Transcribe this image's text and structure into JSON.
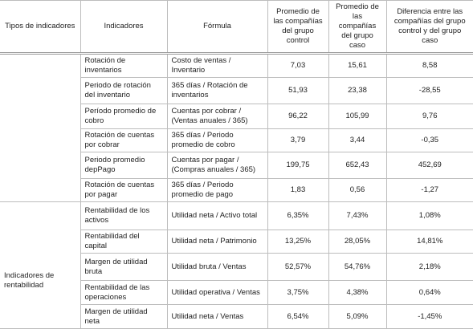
{
  "table": {
    "columns": [
      "Tipos de indicadores",
      "Indicadores",
      "Fórmula",
      "Promedio de las compañías del grupo control",
      "Promedio de las compañías del grupo caso",
      "Diferencia entre las compañías del grupo control y del grupo caso"
    ],
    "groups": [
      {
        "rows": [
          [
            "Rotación de inventarios",
            "Costo de ventas / Inventario",
            "7,03",
            "15,61",
            "8,58"
          ],
          [
            "Periodo de rotación del inventario",
            "365 días / Rotación de inventarios",
            "51,93",
            "23,38",
            "-28,55"
          ],
          [
            "Período promedio de cobro",
            "Cuentas por cobrar / (Ventas anuales / 365)",
            "96,22",
            "105,99",
            "9,76"
          ],
          [
            "Rotación de cuentas por cobrar",
            "365 días / Periodo promedio de cobro",
            "3,79",
            "3,44",
            "-0,35"
          ],
          [
            "Periodo promedio depPago",
            "Cuentas por pagar / (Compras anuales / 365)",
            "199,75",
            "652,43",
            "452,69"
          ],
          [
            "Rotación de cuentas por pagar",
            "365 días / Periodo promedio de pago",
            "1,83",
            "0,56",
            "-1,27"
          ]
        ]
      },
      {
        "label": "Indicadores de rentabilidad",
        "rows": [
          [
            "Rentabilidad de los activos",
            "Utilidad neta / Activo total",
            "6,35%",
            "7,43%",
            "1,08%"
          ],
          [
            "Rentabilidad del capital",
            "Utilidad neta / Patrimonio",
            "13,25%",
            "28,05%",
            "14,81%"
          ],
          [
            "Margen de utilidad bruta",
            "Utilidad bruta / Ventas",
            "52,57%",
            "54,76%",
            "2,18%"
          ],
          [
            "Rentabilidad de las operaciones",
            "Utilidad operativa / Ventas",
            "3,75%",
            "4,38%",
            "0,64%"
          ],
          [
            "Margen de utilidad neta",
            "Utilidad neta / Ventas",
            "6,54%",
            "5,09%",
            "-1,45%"
          ]
        ]
      }
    ]
  }
}
